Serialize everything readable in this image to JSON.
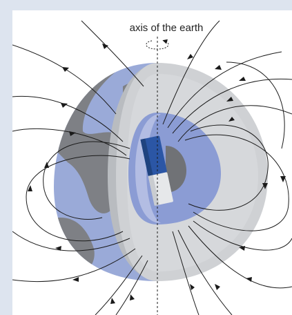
{
  "diagram": {
    "axis_label": "axis of the earth"
  },
  "colors": {
    "background": "#dde4ef",
    "ocean": "#9aaad8",
    "land": "#7e8085",
    "cut_face_light": "#cfd1d4",
    "cut_face_mid": "#b9bcc0",
    "outer_core": "#8b9cd4",
    "inner_core": "#707276",
    "magnet_north": "#2b56a5",
    "magnet_south": "#e6e8ea",
    "field_line": "#1a1a1a"
  }
}
